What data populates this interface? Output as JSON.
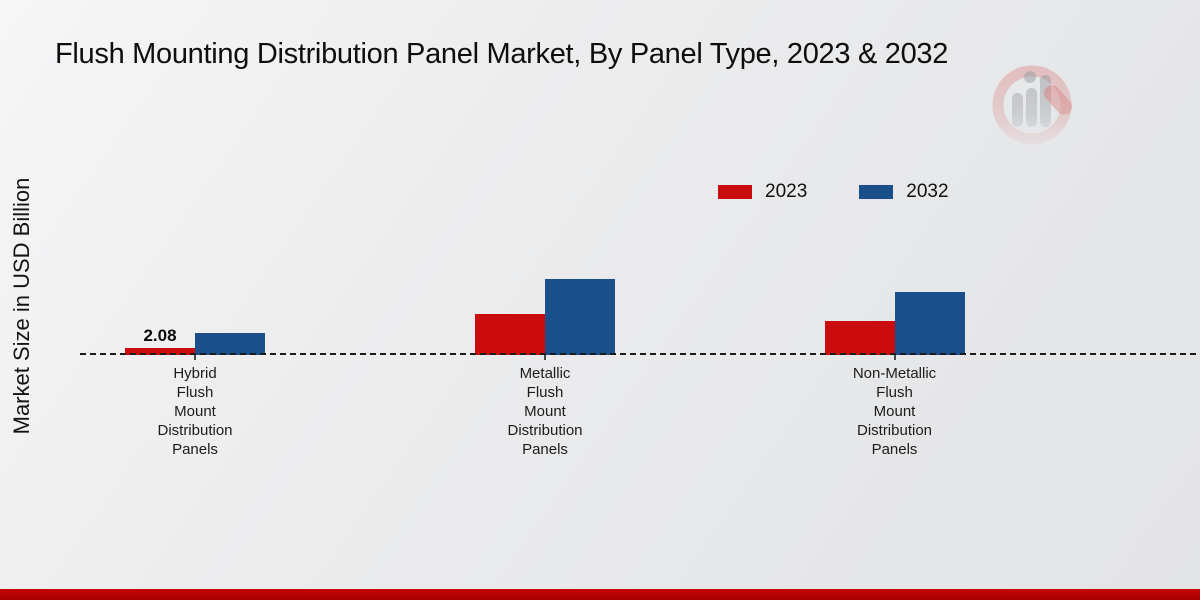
{
  "title": "Flush Mounting Distribution Panel Market, By Panel Type, 2023 & 2032",
  "y_axis_label": "Market Size in USD Billion",
  "legend": [
    {
      "label": "2023",
      "color": "#cb0c0e"
    },
    {
      "label": "2032",
      "color": "#1a4f8c"
    }
  ],
  "watermark_icon": "market-research-future-logo",
  "chart_data": {
    "type": "bar",
    "categories": [
      "Hybrid Flush Mount Distribution Panels",
      "Metallic Flush Mount Distribution Panels",
      "Non-Metallic Flush Mount Distribution Panels"
    ],
    "series": [
      {
        "name": "2023",
        "color": "#cb0c0e",
        "values": [
          2.08,
          12.2,
          10.1
        ]
      },
      {
        "name": "2032",
        "color": "#1a4f8c",
        "values": [
          6.5,
          22.6,
          18.7
        ]
      }
    ],
    "bar_labels": [
      {
        "series_index": 0,
        "category_index": 0,
        "text": "2.08"
      }
    ],
    "title": "Flush Mounting Distribution Panel Market, By Panel Type, 2023 & 2032",
    "xlabel": "",
    "ylabel": "Market Size in USD Billion",
    "ylim": [
      0,
      25
    ],
    "grid": false,
    "legend_position": "upper-right",
    "baseline_style": "dashed"
  },
  "footer": {
    "accent_color": "#b50101"
  }
}
